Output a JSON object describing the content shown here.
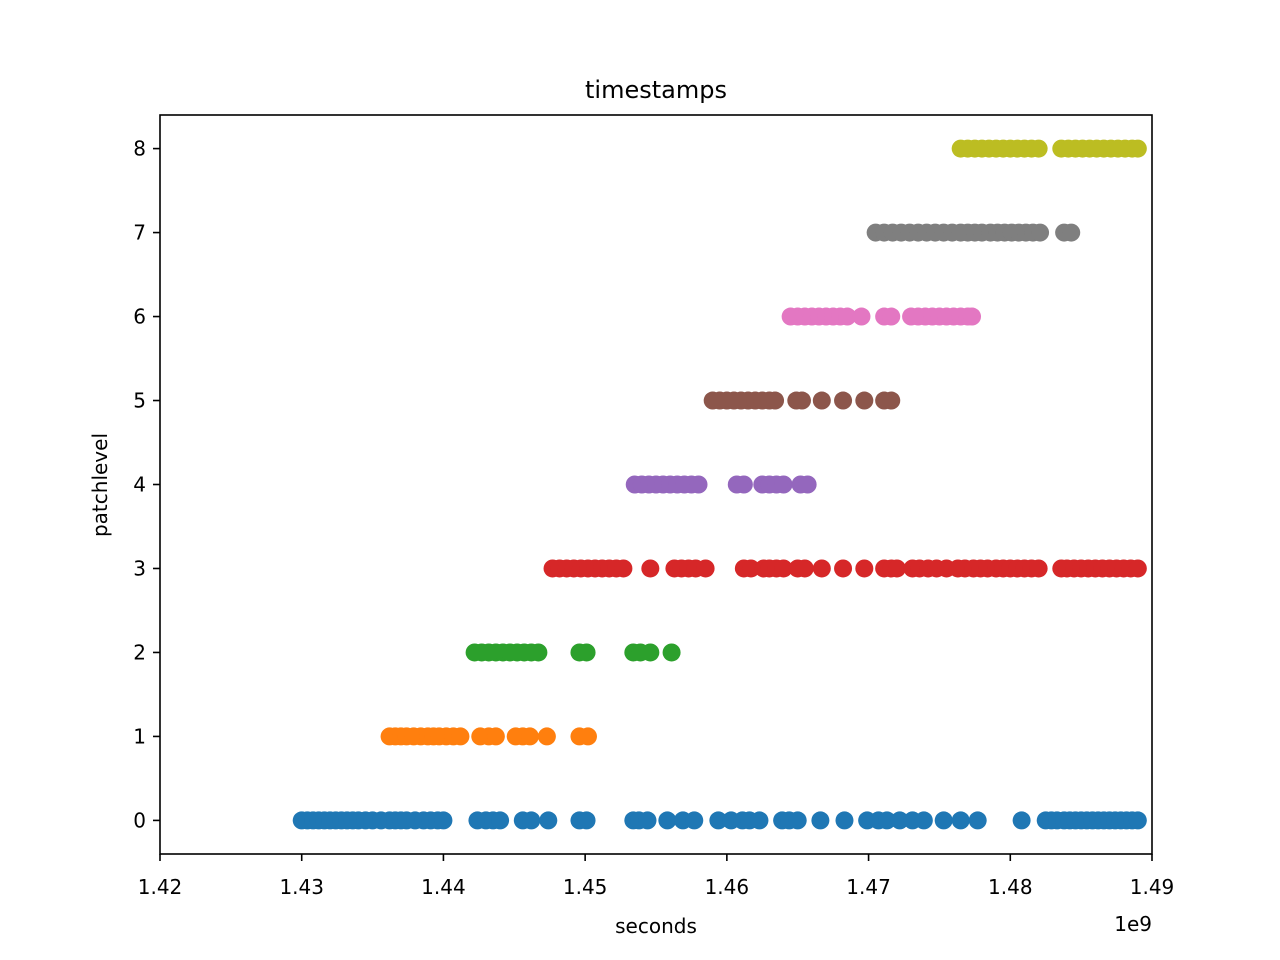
{
  "chart_data": {
    "type": "scatter",
    "title": "timestamps",
    "xlabel": "seconds",
    "ylabel": "patchlevel",
    "x_offset_label": "1e9",
    "x_scale_factor": 1000000000,
    "xlim": [
      1.42,
      1.49
    ],
    "ylim": [
      -0.4,
      8.4
    ],
    "xticks": [
      1.42,
      1.43,
      1.44,
      1.45,
      1.46,
      1.47,
      1.48,
      1.49
    ],
    "xtick_labels": [
      "1.42",
      "1.43",
      "1.44",
      "1.45",
      "1.46",
      "1.47",
      "1.48",
      "1.49"
    ],
    "yticks": [
      0,
      1,
      2,
      3,
      4,
      5,
      6,
      7,
      8
    ],
    "ytick_labels": [
      "0",
      "1",
      "2",
      "3",
      "4",
      "5",
      "6",
      "7",
      "8"
    ],
    "grid": false,
    "series": [
      {
        "y": 0,
        "color": "#1f77b4",
        "x": [
          1.43,
          1.4304,
          1.4308,
          1.4312,
          1.4316,
          1.432,
          1.4324,
          1.4328,
          1.4332,
          1.4336,
          1.434,
          1.4345,
          1.435,
          1.4356,
          1.4362,
          1.4366,
          1.437,
          1.4374,
          1.438,
          1.4386,
          1.4391,
          1.4396,
          1.44,
          1.4424,
          1.443,
          1.4435,
          1.444,
          1.4456,
          1.4462,
          1.4474,
          1.4496,
          1.4501,
          1.4534,
          1.4538,
          1.4544,
          1.4558,
          1.4569,
          1.4577,
          1.4594,
          1.4603,
          1.4611,
          1.4616,
          1.4623,
          1.4639,
          1.4644,
          1.465,
          1.4666,
          1.4683,
          1.4699,
          1.4707,
          1.4713,
          1.4722,
          1.4731,
          1.4739,
          1.4753,
          1.4765,
          1.4777,
          1.4808,
          1.4825,
          1.4829,
          1.4833,
          1.4838,
          1.4842,
          1.4846,
          1.485,
          1.4854,
          1.4858,
          1.4862,
          1.4866,
          1.487,
          1.4874,
          1.4878,
          1.4882,
          1.4886,
          1.489
        ]
      },
      {
        "y": 1,
        "color": "#ff7f0e",
        "x": [
          1.4362,
          1.4366,
          1.437,
          1.4374,
          1.4379,
          1.4384,
          1.4389,
          1.4393,
          1.4397,
          1.4402,
          1.4407,
          1.4412,
          1.4426,
          1.4432,
          1.4437,
          1.4451,
          1.4456,
          1.4461,
          1.4473,
          1.4496,
          1.4502
        ]
      },
      {
        "y": 2,
        "color": "#2ca02c",
        "x": [
          1.4422,
          1.4427,
          1.4432,
          1.4437,
          1.4442,
          1.4447,
          1.4452,
          1.4457,
          1.4462,
          1.4467,
          1.4496,
          1.4501,
          1.4534,
          1.4539,
          1.4546,
          1.4561
        ]
      },
      {
        "y": 3,
        "color": "#d62728",
        "x": [
          1.4477,
          1.4482,
          1.4487,
          1.4492,
          1.4497,
          1.4502,
          1.4507,
          1.4512,
          1.4517,
          1.4522,
          1.4527,
          1.4546,
          1.4563,
          1.4568,
          1.4573,
          1.4578,
          1.4585,
          1.4612,
          1.4617,
          1.4626,
          1.463,
          1.4635,
          1.464,
          1.465,
          1.4655,
          1.4667,
          1.4682,
          1.4697,
          1.4711,
          1.4716,
          1.472,
          1.4731,
          1.4736,
          1.4742,
          1.4748,
          1.4755,
          1.4763,
          1.4768,
          1.4774,
          1.4779,
          1.4784,
          1.479,
          1.4795,
          1.48,
          1.4805,
          1.481,
          1.4815,
          1.482,
          1.4836,
          1.484,
          1.4845,
          1.485,
          1.4855,
          1.486,
          1.4865,
          1.487,
          1.4875,
          1.488,
          1.4885,
          1.489
        ]
      },
      {
        "y": 4,
        "color": "#9467bd",
        "x": [
          1.4535,
          1.454,
          1.4545,
          1.455,
          1.4555,
          1.456,
          1.4565,
          1.457,
          1.4575,
          1.458,
          1.4607,
          1.4612,
          1.4625,
          1.463,
          1.4635,
          1.464,
          1.4652,
          1.4657
        ]
      },
      {
        "y": 5,
        "color": "#8c564b",
        "x": [
          1.459,
          1.4595,
          1.46,
          1.4605,
          1.461,
          1.4615,
          1.462,
          1.4625,
          1.463,
          1.4634,
          1.4649,
          1.4653,
          1.4667,
          1.4682,
          1.4697,
          1.4711,
          1.4716
        ]
      },
      {
        "y": 6,
        "color": "#e377c2",
        "x": [
          1.4645,
          1.465,
          1.4655,
          1.466,
          1.4665,
          1.467,
          1.4675,
          1.468,
          1.4685,
          1.4695,
          1.4711,
          1.4716,
          1.473,
          1.4735,
          1.474,
          1.4745,
          1.475,
          1.4755,
          1.476,
          1.4765,
          1.477,
          1.4773
        ]
      },
      {
        "y": 7,
        "color": "#7f7f7f",
        "x": [
          1.4705,
          1.4711,
          1.4717,
          1.4723,
          1.4729,
          1.4735,
          1.4741,
          1.4747,
          1.4753,
          1.4759,
          1.4765,
          1.477,
          1.4775,
          1.478,
          1.4786,
          1.4791,
          1.4796,
          1.4801,
          1.4806,
          1.4811,
          1.4816,
          1.4821,
          1.4838,
          1.4843
        ]
      },
      {
        "y": 8,
        "color": "#bcbd22",
        "x": [
          1.4765,
          1.477,
          1.4775,
          1.478,
          1.4785,
          1.479,
          1.4795,
          1.48,
          1.4805,
          1.481,
          1.4815,
          1.482,
          1.4836,
          1.4841,
          1.4846,
          1.4851,
          1.4856,
          1.4861,
          1.4866,
          1.4871,
          1.4876,
          1.4881,
          1.4886,
          1.489
        ]
      }
    ]
  }
}
